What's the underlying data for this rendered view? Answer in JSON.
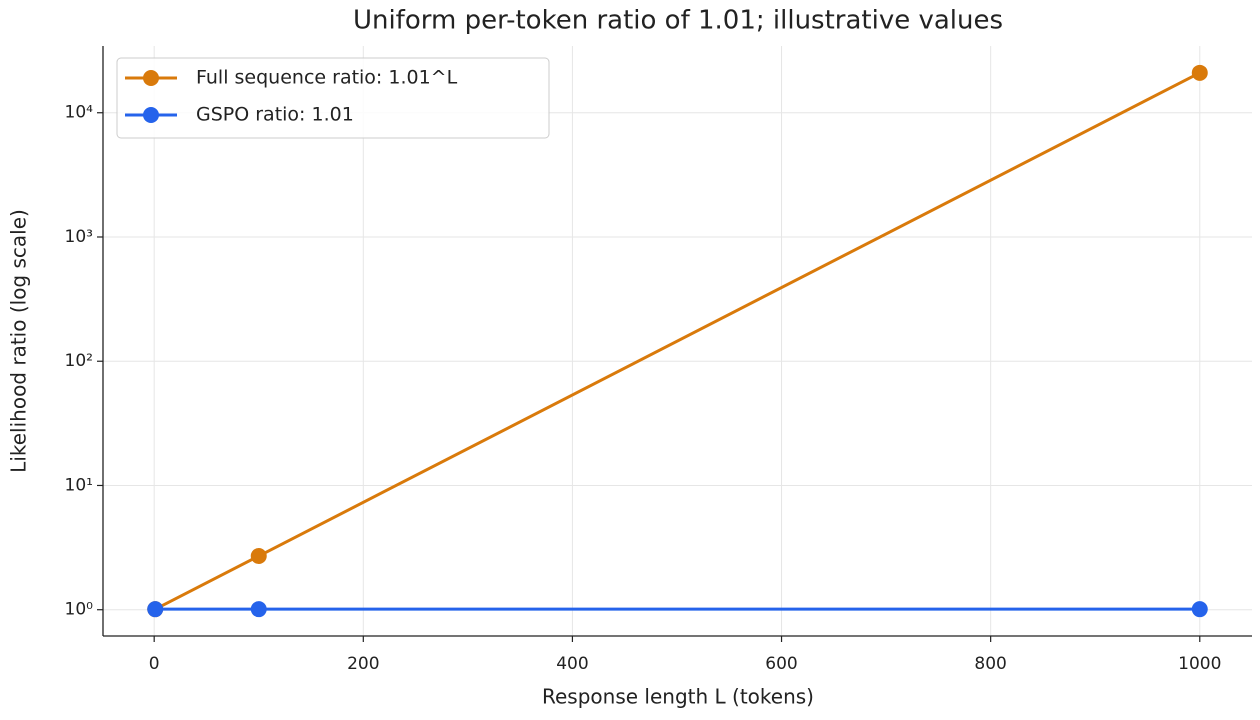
{
  "chart_data": {
    "type": "line",
    "title": "Uniform per-token ratio of 1.01; illustrative values",
    "x_label": "Response length L (tokens)",
    "y_label": "Likelihood ratio (log scale)",
    "x": [
      1,
      100,
      1000
    ],
    "series": [
      {
        "name": "Full sequence ratio: 1.01^L",
        "color": "#d97a0b",
        "values": [
          1.01,
          2.7048,
          20959.16
        ]
      },
      {
        "name": "GSPO ratio: 1.01",
        "color": "#2563eb",
        "values": [
          1.01,
          1.01,
          1.01
        ]
      }
    ],
    "xlim": [
      -48.95,
      1049.95
    ],
    "xticks": [
      0,
      200,
      400,
      600,
      800,
      1000
    ],
    "ylim": [
      0.6144,
      34453
    ],
    "yticks": [
      {
        "value": 1,
        "label": "10⁰"
      },
      {
        "value": 10,
        "label": "10¹"
      },
      {
        "value": 100,
        "label": "10²"
      },
      {
        "value": 1000,
        "label": "10³"
      },
      {
        "value": 10000,
        "label": "10⁴"
      }
    ],
    "y_scale": "log",
    "grid": true,
    "legend": "upper-left"
  }
}
